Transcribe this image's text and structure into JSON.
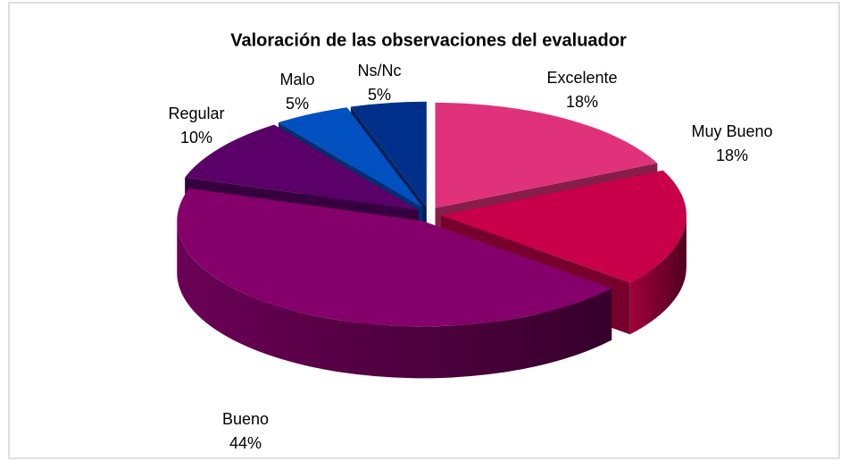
{
  "chart_data": {
    "type": "pie3d",
    "title": "Valoración de las observaciones del evaluador",
    "categories": [
      "Excelente",
      "Muy Bueno",
      "Bueno",
      "Regular",
      "Malo",
      "Ns/Nc"
    ],
    "values": [
      18,
      18,
      44,
      10,
      5,
      5
    ],
    "value_labels": [
      "18%",
      "18%",
      "44%",
      "10%",
      "5%",
      "5%"
    ],
    "colors": [
      "#e0327a",
      "#c8004a",
      "#86006b",
      "#5a0068",
      "#0050c0",
      "#00308a"
    ]
  }
}
